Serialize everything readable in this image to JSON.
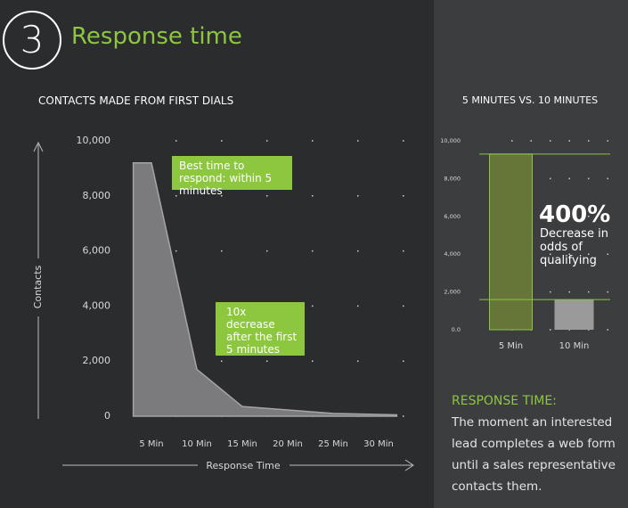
{
  "header": {
    "number": "3",
    "title": "Response time"
  },
  "chart_data": [
    {
      "type": "area",
      "title": "CONTACTS MADE FROM FIRST DIALS",
      "x_label": "Response Time",
      "y_label": "Contacts",
      "x": [
        3,
        5,
        10,
        15,
        25,
        32
      ],
      "values": [
        9200,
        9200,
        1700,
        350,
        100,
        50
      ],
      "color": "#7b7b7d",
      "xlim": [
        2,
        33
      ],
      "xticks": [
        {
          "value": 5,
          "label": "5 Min"
        },
        {
          "value": 10,
          "label": "10 Min"
        },
        {
          "value": 15,
          "label": "15 Min"
        },
        {
          "value": 20,
          "label": "20 Min"
        },
        {
          "value": 25,
          "label": "25 Min"
        },
        {
          "value": 30,
          "label": "30 Min"
        }
      ],
      "ylim": [
        0,
        10000
      ],
      "yticks": [
        0,
        {
          "value": 2000,
          "label": "2,000"
        },
        {
          "value": 4000,
          "label": "4,000"
        },
        {
          "value": 6000,
          "label": "6,000"
        },
        {
          "value": 8000,
          "label": "8,000"
        },
        {
          "value": 10000,
          "label": "10,000"
        }
      ],
      "grid": true,
      "annotations": [
        "Best time to respond: within 5 minutes",
        "10x decrease after the first 5 minutes"
      ]
    },
    {
      "type": "bar",
      "title": "5 MINUTES VS. 10 MINUTES",
      "categories": [
        "5 Min",
        "10 Min"
      ],
      "values": [
        9300,
        1600
      ],
      "colors": [
        "#667638",
        "#9a9a9b"
      ],
      "ylim": [
        0,
        10000
      ],
      "yticks": [
        {
          "value": 0,
          "label": "0.0"
        },
        {
          "value": 2000,
          "label": "2,000"
        },
        {
          "value": 4000,
          "label": "4,000"
        },
        {
          "value": 6000,
          "label": "6,000"
        },
        {
          "value": 8000,
          "label": "8,000"
        },
        {
          "value": 10000,
          "label": "10,000"
        }
      ],
      "grid": true,
      "annotations": [
        "400%",
        "Decrease in odds of qualifying"
      ]
    }
  ],
  "sidebar": {
    "heading": "RESPONSE TIME:",
    "text": "The moment an interested lead completes a web form until a sales representative contacts them."
  }
}
